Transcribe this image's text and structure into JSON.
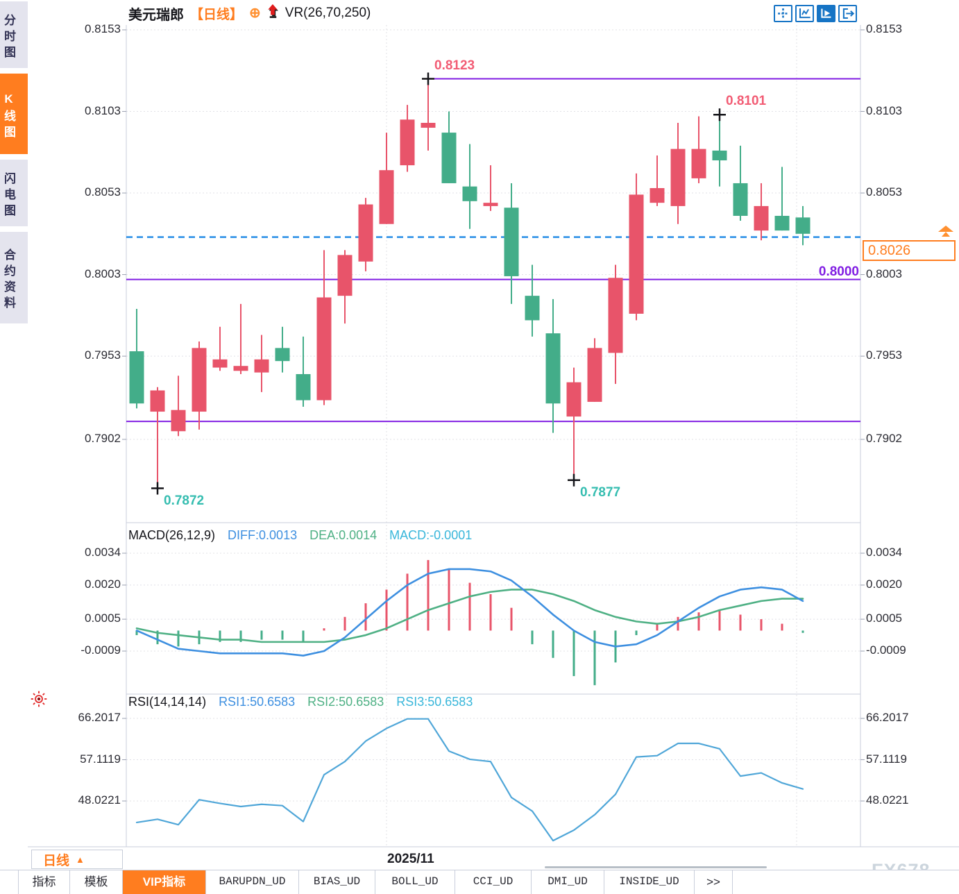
{
  "colors": {
    "up": "#e8546a",
    "down": "#43ad89",
    "purple": "#811ee3",
    "blue_dashed": "#1b87e5",
    "orange": "#ff7d1f",
    "diff_blue": "#3d8fe0",
    "dea_green": "#4eb084",
    "macd_cyan": "#38b6da",
    "rsi_line": "#4fa6d8",
    "annotation_pink": "#f25c74",
    "annotation_teal": "#35bdb0",
    "axis_text": "#2b2b33",
    "grid": "#e0e0e6",
    "panel_border": "#c9cedb",
    "watermark": "#ccd5dd",
    "sidebar_bg": "#e4e4ee",
    "sidebar_text": "#333355",
    "toolbar_blue": "#1674c5"
  },
  "sidebar": {
    "items": [
      {
        "label": "分时图",
        "active": false
      },
      {
        "label": "K线图",
        "active": true
      },
      {
        "label": "闪电图",
        "active": false
      },
      {
        "label": "合约资料",
        "active": false
      }
    ]
  },
  "header": {
    "symbol": "美元瑞郎",
    "period": "【日线】",
    "add_icon": "⊕",
    "indicator": "VR(26,70,250)",
    "toolbar_icons": [
      {
        "name": "pan-crosshair-icon",
        "active": false
      },
      {
        "name": "axis-zoom-icon",
        "active": false
      },
      {
        "name": "axis-play-icon",
        "active": true
      },
      {
        "name": "shift-right-icon",
        "active": false
      }
    ]
  },
  "bottom": {
    "period_selector": {
      "label": "日线",
      "arrow": "▲"
    },
    "x_axis_label": "2025/11",
    "tabs": [
      {
        "label": "指标",
        "active": false
      },
      {
        "label": "模板",
        "active": false
      },
      {
        "label": "VIP指标",
        "active": true
      },
      {
        "label": "BARUPDN_UD",
        "active": false
      },
      {
        "label": "BIAS_UD",
        "active": false
      },
      {
        "label": "BOLL_UD",
        "active": false
      },
      {
        "label": "CCI_UD",
        "active": false
      },
      {
        "label": "DMI_UD",
        "active": false
      },
      {
        "label": "INSIDE_UD",
        "active": false
      },
      {
        "label": ">>",
        "active": false
      }
    ],
    "watermark": "FX678"
  },
  "chart_data": [
    {
      "type": "candlestick",
      "title": "美元瑞郎 日线",
      "y_axis": [
        {
          "text": "0.8153",
          "value": 0.8153
        },
        {
          "text": "0.8103",
          "value": 0.8103
        },
        {
          "text": "0.8053",
          "value": 0.8053
        },
        {
          "text": "0.8003",
          "value": 0.8003
        },
        {
          "text": "0.7953",
          "value": 0.7953
        },
        {
          "text": "0.7902",
          "value": 0.7902
        }
      ],
      "ohlc": [
        [
          0.7956,
          0.7982,
          0.7921,
          0.7924
        ],
        [
          0.7919,
          0.7934,
          0.7872,
          0.7932
        ],
        [
          0.7907,
          0.7941,
          0.7904,
          0.792
        ],
        [
          0.7919,
          0.7962,
          0.7908,
          0.7958
        ],
        [
          0.7946,
          0.7971,
          0.7944,
          0.7951
        ],
        [
          0.7944,
          0.7985,
          0.7942,
          0.7947
        ],
        [
          0.7943,
          0.7966,
          0.7931,
          0.7951
        ],
        [
          0.7958,
          0.7971,
          0.7943,
          0.795
        ],
        [
          0.7942,
          0.7965,
          0.7922,
          0.7926
        ],
        [
          0.7926,
          0.8018,
          0.7923,
          0.7989
        ],
        [
          0.799,
          0.8018,
          0.7973,
          0.8015
        ],
        [
          0.8011,
          0.805,
          0.8005,
          0.8046
        ],
        [
          0.8034,
          0.809,
          0.8034,
          0.8067
        ],
        [
          0.807,
          0.8107,
          0.8066,
          0.8098
        ],
        [
          0.8093,
          0.8123,
          0.8079,
          0.8096
        ],
        [
          0.809,
          0.8103,
          0.8059,
          0.8059
        ],
        [
          0.8057,
          0.8083,
          0.8031,
          0.8048
        ],
        [
          0.8045,
          0.807,
          0.8042,
          0.8047
        ],
        [
          0.8044,
          0.8059,
          0.7985,
          0.8002
        ],
        [
          0.799,
          0.8009,
          0.7965,
          0.7975
        ],
        [
          0.7967,
          0.7988,
          0.7906,
          0.7924
        ],
        [
          0.7916,
          0.7946,
          0.7877,
          0.7937
        ],
        [
          0.7925,
          0.7964,
          0.7925,
          0.7958
        ],
        [
          0.7955,
          0.8009,
          0.7936,
          0.8001
        ],
        [
          0.7979,
          0.8065,
          0.7975,
          0.8052
        ],
        [
          0.8047,
          0.8076,
          0.8045,
          0.8056
        ],
        [
          0.8045,
          0.8096,
          0.8034,
          0.808
        ],
        [
          0.8062,
          0.81,
          0.8059,
          0.808
        ],
        [
          0.8079,
          0.8101,
          0.8057,
          0.8073
        ],
        [
          0.8059,
          0.8082,
          0.8036,
          0.8039
        ],
        [
          0.803,
          0.8059,
          0.8024,
          0.8045
        ],
        [
          0.8039,
          0.8069,
          0.803,
          0.803
        ],
        [
          0.8038,
          0.8045,
          0.8021,
          0.8028
        ]
      ],
      "annotations": [
        {
          "text": "0.8123",
          "candle": 15,
          "price": 0.8123,
          "side": "high",
          "color_key": "annotation_pink"
        },
        {
          "text": "0.8101",
          "candle": 29,
          "price": 0.8101,
          "side": "high",
          "color_key": "annotation_pink"
        },
        {
          "text": "0.7872",
          "candle": 2,
          "price": 0.7872,
          "side": "low",
          "color_key": "annotation_teal"
        },
        {
          "text": "0.7877",
          "candle": 22,
          "price": 0.7877,
          "side": "low",
          "color_key": "annotation_teal"
        }
      ],
      "levels": [
        {
          "price": 0.8123,
          "from_candle": 15,
          "label": ""
        },
        {
          "price": 0.8,
          "label": "0.8000"
        },
        {
          "price": 0.7913,
          "label": ""
        }
      ],
      "current_price": {
        "text": "0.8026",
        "value": 0.8026
      },
      "v_gridlines": [
        12,
        31.7
      ]
    },
    {
      "type": "macd",
      "title": "MACD(26,12,9)",
      "legend": [
        {
          "text": "DIFF:0.0013",
          "color_key": "diff_blue"
        },
        {
          "text": "DEA:0.0014",
          "color_key": "dea_green"
        },
        {
          "text": "MACD:-0.0001",
          "color_key": "macd_cyan"
        }
      ],
      "y_axis": [
        {
          "text": "0.0034",
          "value": 0.0034
        },
        {
          "text": "0.0020",
          "value": 0.002
        },
        {
          "text": "0.0005",
          "value": 0.0005
        },
        {
          "text": "-0.0009",
          "value": -0.0009
        }
      ],
      "histogram": [
        -0.0002,
        -0.0006,
        -0.0007,
        -0.0006,
        -0.0005,
        -0.0005,
        -0.0004,
        -0.0004,
        -0.0005,
        0.0001,
        0.0006,
        0.0012,
        0.0018,
        0.0025,
        0.0031,
        0.0027,
        0.0021,
        0.0016,
        0.001,
        -0.0006,
        -0.0012,
        -0.002,
        -0.0024,
        -0.0014,
        -0.0002,
        0.0003,
        0.0006,
        0.0008,
        0.0009,
        0.0007,
        0.0005,
        0.0003,
        -0.0001
      ],
      "diff": [
        0.0,
        -0.0004,
        -0.0008,
        -0.0009,
        -0.001,
        -0.001,
        -0.001,
        -0.001,
        -0.0011,
        -0.0009,
        -0.0003,
        0.0005,
        0.0013,
        0.002,
        0.0025,
        0.0027,
        0.0027,
        0.0026,
        0.0022,
        0.0015,
        0.0007,
        0.0,
        -0.0005,
        -0.0007,
        -0.0006,
        -0.0002,
        0.0004,
        0.001,
        0.0015,
        0.0018,
        0.0019,
        0.0018,
        0.0013
      ],
      "dea": [
        0.0001,
        -0.0001,
        -0.0002,
        -0.0003,
        -0.0004,
        -0.0004,
        -0.0005,
        -0.0005,
        -0.0005,
        -0.0005,
        -0.0004,
        -0.0002,
        0.0001,
        0.0005,
        0.0009,
        0.0012,
        0.0015,
        0.0017,
        0.0018,
        0.0018,
        0.0016,
        0.0013,
        0.0009,
        0.0006,
        0.0004,
        0.0003,
        0.0004,
        0.0006,
        0.0009,
        0.0011,
        0.0013,
        0.0014,
        0.0014
      ]
    },
    {
      "type": "rsi",
      "title": "RSI(14,14,14)",
      "legend": [
        {
          "text": "RSI1:50.6583",
          "color_key": "diff_blue"
        },
        {
          "text": "RSI2:50.6583",
          "color_key": "dea_green"
        },
        {
          "text": "RSI3:50.6583",
          "color_key": "macd_cyan"
        }
      ],
      "y_axis": [
        {
          "text": "66.2017",
          "value": 66.2017
        },
        {
          "text": "57.1119",
          "value": 57.1119
        },
        {
          "text": "48.0221",
          "value": 48.0221
        }
      ],
      "values": [
        43.3,
        44.0,
        42.8,
        48.3,
        47.5,
        46.8,
        47.3,
        47.0,
        43.5,
        53.8,
        56.7,
        61.2,
        64.0,
        66.1,
        66.1,
        59.0,
        57.2,
        56.7,
        48.8,
        45.8,
        39.3,
        41.6,
        45.0,
        49.5,
        57.7,
        58.0,
        60.7,
        60.7,
        59.5,
        53.5,
        54.2,
        52.0,
        50.66
      ]
    }
  ]
}
